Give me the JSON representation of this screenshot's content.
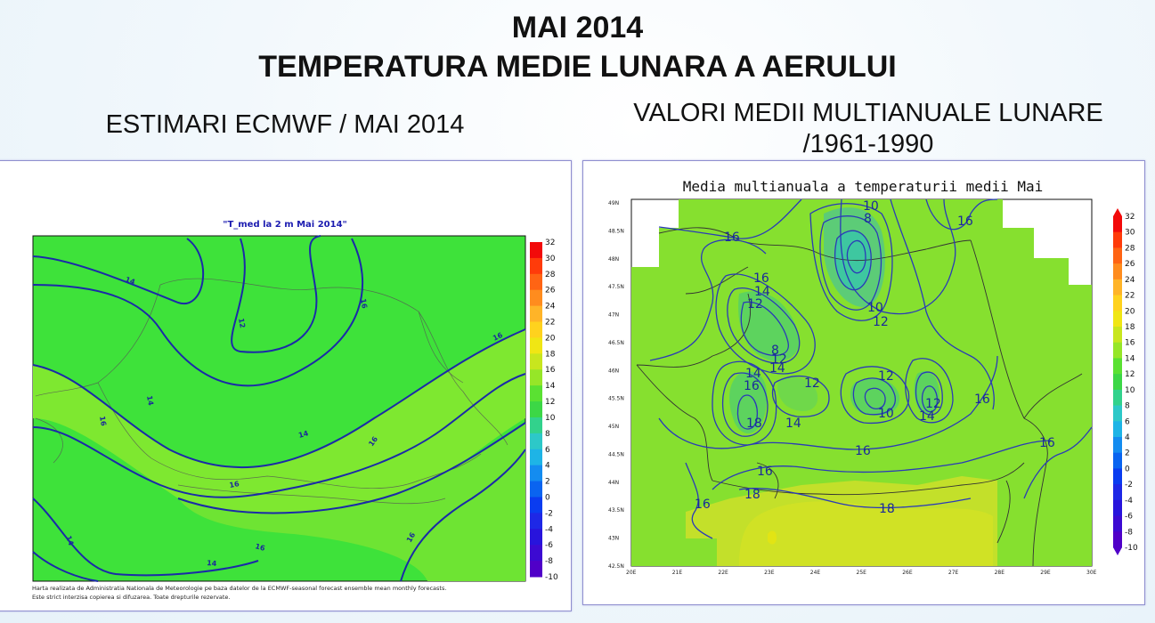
{
  "header": {
    "title_line1": "MAI 2014",
    "title_line2": "TEMPERATURA MEDIE LUNARA A AERULUI"
  },
  "left_panel": {
    "subtitle": "ESTIMARI ECMWF / MAI 2014",
    "map_title": "\"T_med la 2 m Mai 2014\"",
    "colorbar_labels": [
      "32",
      "30",
      "28",
      "26",
      "24",
      "22",
      "20",
      "18",
      "16",
      "14",
      "12",
      "10",
      "8",
      "6",
      "4",
      "2",
      "0",
      "-2",
      "-4",
      "-6",
      "-8",
      "-10"
    ],
    "contour_labels": [
      "14",
      "12",
      "16",
      "16",
      "14",
      "14",
      "16",
      "16",
      "16",
      "16",
      "14",
      "14",
      "16",
      "14",
      "16"
    ],
    "footnote_line1": "Harta realizata de Administratia Nationala de Meteorologie pe baza datelor de la ECMWF-seasonal forecast ensemble mean monthly forecasts.",
    "footnote_line2": "Este strict interzisa copierea si difuzarea. Toate drepturile rezervate."
  },
  "right_panel": {
    "subtitle_line1": "VALORI MEDII MULTIANUALE LUNARE",
    "subtitle_line2": "/1961-1990",
    "map_title": "Media multianuala a temperaturii medii Mai",
    "lat_labels": [
      "49N",
      "48.5N",
      "48N",
      "47.5N",
      "47N",
      "46.5N",
      "46N",
      "45.5N",
      "45N",
      "44.5N",
      "44N",
      "43.5N",
      "43N",
      "42.5N"
    ],
    "lon_labels": [
      "20E",
      "21E",
      "22E",
      "23E",
      "24E",
      "25E",
      "26E",
      "27E",
      "28E",
      "29E",
      "30E"
    ],
    "colorbar_labels": [
      "32",
      "30",
      "28",
      "26",
      "24",
      "22",
      "20",
      "18",
      "16",
      "14",
      "12",
      "10",
      "8",
      "6",
      "4",
      "2",
      "0",
      "-2",
      "-4",
      "-6",
      "-8",
      "-10"
    ],
    "contour_labels": [
      "10",
      "8",
      "16",
      "16",
      "16",
      "14",
      "12",
      "8",
      "12",
      "14",
      "10",
      "12",
      "14",
      "16",
      "16",
      "18",
      "14",
      "12",
      "12",
      "10",
      "14",
      "12",
      "16",
      "16",
      "18",
      "18",
      "16",
      "16"
    ]
  }
}
